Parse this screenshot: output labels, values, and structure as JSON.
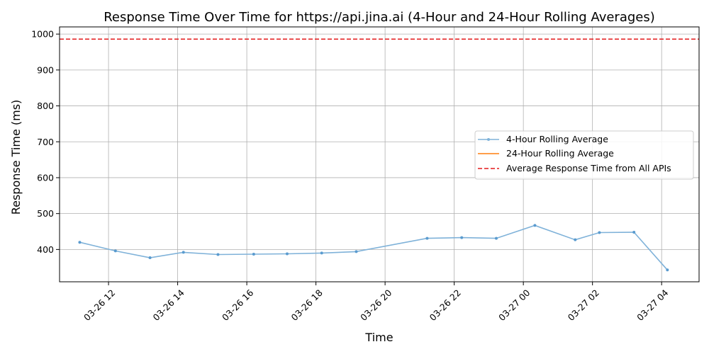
{
  "chart_data": {
    "type": "line",
    "title": "Response Time Over Time for https://api.jina.ai (4-Hour and 24-Hour Rolling Averages)",
    "xlabel": "Time",
    "ylabel": "Response Time (ms)",
    "xlim": [
      "2026-03-26T10:35",
      "2026-03-27T05:05"
    ],
    "ylim": [
      310,
      1020
    ],
    "grid": true,
    "legend_position": "center-right",
    "x_ticks": [
      {
        "t": "2026-03-26T12:00",
        "label": "03-26 12"
      },
      {
        "t": "2026-03-26T14:00",
        "label": "03-26 14"
      },
      {
        "t": "2026-03-26T16:00",
        "label": "03-26 16"
      },
      {
        "t": "2026-03-26T18:00",
        "label": "03-26 18"
      },
      {
        "t": "2026-03-26T20:00",
        "label": "03-26 20"
      },
      {
        "t": "2026-03-26T22:00",
        "label": "03-26 22"
      },
      {
        "t": "2026-03-27T00:00",
        "label": "03-27 00"
      },
      {
        "t": "2026-03-27T02:00",
        "label": "03-27 02"
      },
      {
        "t": "2026-03-27T04:00",
        "label": "03-27 04"
      }
    ],
    "y_ticks": [
      400,
      500,
      600,
      700,
      800,
      900,
      1000
    ],
    "series": [
      {
        "name": "4-Hour Rolling Average",
        "color": "#7fb2d9",
        "style": "solid-with-markers",
        "points": [
          {
            "t": "2026-03-26T11:10",
            "y": 420
          },
          {
            "t": "2026-03-26T12:12",
            "y": 396
          },
          {
            "t": "2026-03-26T13:12",
            "y": 377
          },
          {
            "t": "2026-03-26T14:10",
            "y": 392
          },
          {
            "t": "2026-03-26T15:10",
            "y": 386
          },
          {
            "t": "2026-03-26T16:12",
            "y": 387
          },
          {
            "t": "2026-03-26T17:10",
            "y": 388
          },
          {
            "t": "2026-03-26T18:10",
            "y": 390
          },
          {
            "t": "2026-03-26T19:10",
            "y": 394
          },
          {
            "t": "2026-03-26T21:13",
            "y": 431
          },
          {
            "t": "2026-03-26T22:13",
            "y": 433
          },
          {
            "t": "2026-03-26T23:13",
            "y": 431
          },
          {
            "t": "2026-03-27T00:20",
            "y": 467
          },
          {
            "t": "2026-03-27T01:30",
            "y": 427
          },
          {
            "t": "2026-03-27T02:12",
            "y": 447
          },
          {
            "t": "2026-03-27T03:12",
            "y": 448
          },
          {
            "t": "2026-03-27T04:10",
            "y": 343
          }
        ]
      },
      {
        "name": "24-Hour Rolling Average",
        "color": "#ff7f0e",
        "style": "solid",
        "points": []
      },
      {
        "name": "Average Response Time from All APIs",
        "color": "#e31a1c",
        "style": "dashed-horizontal",
        "value": 986
      }
    ]
  }
}
